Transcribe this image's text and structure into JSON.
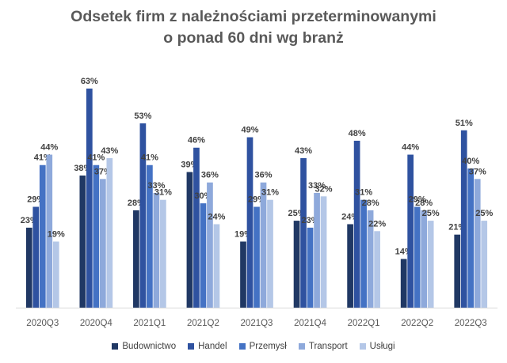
{
  "chart_data": {
    "type": "bar",
    "title": [
      "Odsetek firm z należnościami przeterminowanymi",
      "o ponad 60 dni wg branż"
    ],
    "categories": [
      "2020Q3",
      "2020Q4",
      "2021Q1",
      "2021Q2",
      "2021Q3",
      "2021Q4",
      "2022Q1",
      "2022Q2",
      "2022Q3"
    ],
    "series": [
      {
        "name": "Budownictwo",
        "color": "#203864",
        "values": [
          23,
          38,
          28,
          39,
          19,
          25,
          24,
          14,
          21
        ],
        "labels": [
          "23%",
          "38%",
          "28%",
          "39%",
          "19%",
          "25%",
          "24%",
          "14%",
          "21%"
        ]
      },
      {
        "name": "Handel",
        "color": "#2f52a0",
        "values": [
          29,
          63,
          53,
          46,
          49,
          43,
          48,
          44,
          51
        ],
        "labels": [
          "29%",
          "63%",
          "53%",
          "46%",
          "49%",
          "43%",
          "48%",
          "44%",
          "51%"
        ]
      },
      {
        "name": "Przemysł",
        "color": "#4472c4",
        "values": [
          41,
          41,
          41,
          30,
          29,
          23,
          31,
          29,
          40
        ],
        "labels": [
          "41%",
          "41%",
          "41%",
          "30%",
          "29%",
          "23%",
          "31%",
          "29%",
          "40%"
        ]
      },
      {
        "name": "Transport",
        "color": "#8ea9db",
        "values": [
          44,
          37,
          33,
          36,
          36,
          33,
          28,
          28,
          37
        ],
        "labels": [
          "44%",
          "37%",
          "33%",
          "36%",
          "36%",
          "33%",
          "28%",
          "28%",
          "37%"
        ]
      },
      {
        "name": "Usługi",
        "color": "#b4c7e7",
        "values": [
          19,
          43,
          31,
          24,
          31,
          32,
          22,
          25,
          25
        ],
        "labels": [
          "19%",
          "43%",
          "31%",
          "24%",
          "31%",
          "32%",
          "22%",
          "25%",
          "25%"
        ]
      }
    ],
    "ylim": [
      0,
      63
    ],
    "grid": false,
    "legend_position": "bottom"
  }
}
